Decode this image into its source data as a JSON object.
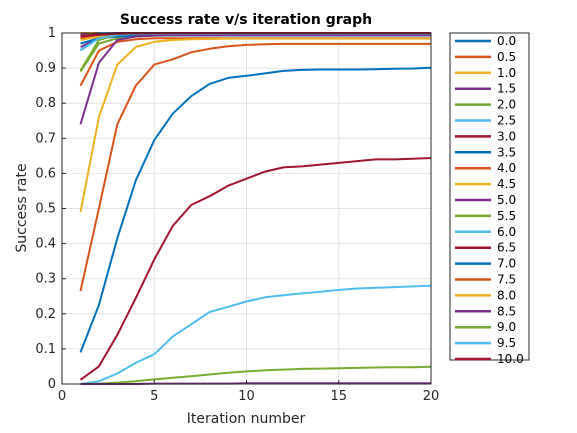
{
  "chart_data": {
    "type": "line",
    "title": "Success rate v/s iteration graph",
    "xlabel": "Iteration number",
    "ylabel": "Success rate",
    "xlim": [
      0,
      20
    ],
    "ylim": [
      0,
      1
    ],
    "xticks": [
      "0",
      "5",
      "10",
      "15",
      "20"
    ],
    "yticks": [
      "0",
      "0.1",
      "0.2",
      "0.3",
      "0.4",
      "0.5",
      "0.6",
      "0.7",
      "0.8",
      "0.9",
      "1"
    ],
    "grid": true,
    "legend_position": "outside-right",
    "x": [
      1,
      2,
      3,
      4,
      5,
      6,
      7,
      8,
      9,
      10,
      11,
      12,
      13,
      14,
      15,
      16,
      17,
      18,
      19,
      20
    ],
    "series": [
      {
        "name": "0.0",
        "color": "#0072BD",
        "values": [
          1,
          1,
          1,
          1,
          1,
          1,
          1,
          1,
          1,
          1,
          1,
          1,
          1,
          1,
          1,
          1,
          1,
          1,
          1,
          1
        ]
      },
      {
        "name": "0.5",
        "color": "#D95319",
        "values": [
          1,
          1,
          1,
          1,
          1,
          1,
          1,
          1,
          1,
          1,
          1,
          1,
          1,
          1,
          1,
          1,
          1,
          1,
          1,
          1
        ]
      },
      {
        "name": "1.0",
        "color": "#EDB120",
        "values": [
          1,
          1,
          1,
          1,
          1,
          1,
          1,
          1,
          1,
          1,
          1,
          1,
          1,
          1,
          1,
          1,
          1,
          1,
          1,
          1
        ]
      },
      {
        "name": "1.5",
        "color": "#7E2F8E",
        "values": [
          0.995,
          1,
          1,
          1,
          1,
          1,
          1,
          1,
          1,
          1,
          1,
          1,
          1,
          1,
          1,
          1,
          1,
          1,
          1,
          1
        ]
      },
      {
        "name": "2.0",
        "color": "#77AC30",
        "values": [
          0.99,
          1,
          1,
          1,
          1,
          1,
          1,
          1,
          1,
          1,
          1,
          1,
          1,
          1,
          1,
          1,
          1,
          1,
          1,
          1
        ]
      },
      {
        "name": "2.5",
        "color": "#4DBEEE",
        "values": [
          0.985,
          1,
          1,
          1,
          1,
          1,
          1,
          1,
          1,
          1,
          1,
          1,
          1,
          1,
          1,
          1,
          1,
          1,
          1,
          1
        ]
      },
      {
        "name": "3.0",
        "color": "#A2142F",
        "values": [
          0.99,
          0.998,
          1,
          1,
          1,
          1,
          1,
          1,
          1,
          1,
          1,
          1,
          1,
          1,
          1,
          1,
          1,
          1,
          1,
          1
        ]
      },
      {
        "name": "3.5",
        "color": "#0072BD",
        "values": [
          0.99,
          0.995,
          0.997,
          0.998,
          0.999,
          0.999,
          0.999,
          0.999,
          0.999,
          0.999,
          0.999,
          0.999,
          0.999,
          0.999,
          0.999,
          0.999,
          0.999,
          0.999,
          0.999,
          0.999
        ]
      },
      {
        "name": "4.0",
        "color": "#D95319",
        "values": [
          0.985,
          0.99,
          0.992,
          0.993,
          0.994,
          0.994,
          0.994,
          0.994,
          0.994,
          0.994,
          0.994,
          0.994,
          0.994,
          0.994,
          0.994,
          0.994,
          0.994,
          0.994,
          0.994,
          0.994
        ]
      },
      {
        "name": "4.5",
        "color": "#EDB120",
        "values": [
          0.98,
          0.99,
          0.993,
          0.995,
          0.996,
          0.996,
          0.996,
          0.996,
          0.996,
          0.996,
          0.996,
          0.996,
          0.996,
          0.996,
          0.996,
          0.996,
          0.996,
          0.996,
          0.996,
          0.996
        ]
      },
      {
        "name": "5.0",
        "color": "#7E2F8E",
        "values": [
          0.96,
          0.985,
          0.99,
          0.993,
          0.994,
          0.995,
          0.995,
          0.995,
          0.995,
          0.995,
          0.995,
          0.995,
          0.995,
          0.995,
          0.995,
          0.995,
          0.995,
          0.995,
          0.995,
          0.995
        ]
      },
      {
        "name": "5.5",
        "color": "#77AC30",
        "values": [
          0.89,
          0.97,
          0.985,
          0.99,
          0.992,
          0.993,
          0.993,
          0.993,
          0.993,
          0.993,
          0.993,
          0.993,
          0.993,
          0.993,
          0.993,
          0.993,
          0.993,
          0.993,
          0.993,
          0.993
        ]
      },
      {
        "name": "6.0",
        "color": "#4DBEEE",
        "values": [
          0.95,
          0.985,
          0.99,
          0.992,
          0.993,
          0.993,
          0.993,
          0.993,
          0.993,
          0.993,
          0.993,
          0.993,
          0.993,
          0.993,
          0.993,
          0.993,
          0.993,
          0.993,
          0.993,
          0.993
        ]
      },
      {
        "name": "6.5",
        "color": "#A2142F",
        "values": [
          0.99,
          0.995,
          0.997,
          0.998,
          0.998,
          0.998,
          0.998,
          0.998,
          0.998,
          0.998,
          0.998,
          0.998,
          0.998,
          0.998,
          0.998,
          0.998,
          0.998,
          0.998,
          0.998,
          0.998
        ]
      },
      {
        "name": "7.0",
        "color": "#0072BD",
        "values": [
          0.97,
          0.985,
          0.99,
          0.992,
          0.993,
          0.993,
          0.993,
          0.993,
          0.993,
          0.993,
          0.993,
          0.993,
          0.993,
          0.993,
          0.993,
          0.993,
          0.993,
          0.993,
          0.993,
          0.993
        ]
      },
      {
        "name": "7.5",
        "color": "#D95319",
        "values": [
          0.85,
          0.95,
          0.975,
          0.982,
          0.985,
          0.985,
          0.985,
          0.985,
          0.985,
          0.985,
          0.985,
          0.985,
          0.985,
          0.985,
          0.985,
          0.985,
          0.985,
          0.985,
          0.985,
          0.985
        ]
      },
      {
        "name": "8.0",
        "color": "#EDB120",
        "values": [
          0.49,
          0.76,
          0.91,
          0.96,
          0.975,
          0.98,
          0.982,
          0.983,
          0.984,
          0.984,
          0.984,
          0.984,
          0.984,
          0.984,
          0.984,
          0.984,
          0.984,
          0.984,
          0.984,
          0.984
        ]
      },
      {
        "name": "8.5",
        "color": "#7E2F8E",
        "values": [
          0.74,
          0.915,
          0.98,
          0.99,
          0.993,
          0.994,
          0.994,
          0.994,
          0.994,
          0.994,
          0.994,
          0.994,
          0.994,
          0.994,
          0.994,
          0.994,
          0.994,
          0.994,
          0.994,
          0.994
        ]
      },
      {
        "name": "9.0",
        "color": "#77AC30",
        "values": [
          0.893,
          0.98,
          0.995,
          0.998,
          0.999,
          0.999,
          0.999,
          0.999,
          0.999,
          0.999,
          0.999,
          0.999,
          0.999,
          0.999,
          0.999,
          0.999,
          0.999,
          0.999,
          0.999,
          0.999
        ]
      },
      {
        "name": "9.5",
        "color": "#4DBEEE",
        "values": [
          0.952,
          0.985,
          0.995,
          0.998,
          0.999,
          0.999,
          0.999,
          0.999,
          0.999,
          0.999,
          0.999,
          0.999,
          0.999,
          0.999,
          0.999,
          0.999,
          0.999,
          0.999,
          0.999,
          0.999
        ]
      },
      {
        "name": "10.0",
        "color": "#A2142F",
        "values": [
          0.99,
          0.995,
          0.998,
          0.999,
          1,
          1,
          1,
          1,
          1,
          1,
          1,
          1,
          1,
          1,
          1,
          1,
          1,
          1,
          1,
          1
        ]
      }
    ],
    "visible_curves_from_image": [
      {
        "color": "#D95319",
        "values": [
          0.265,
          0.5,
          0.74,
          0.85,
          0.91,
          0.925,
          0.945,
          0.955,
          0.962,
          0.966,
          0.968,
          0.969,
          0.969,
          0.969,
          0.969,
          0.969,
          0.969,
          0.969,
          0.969,
          0.969
        ]
      },
      {
        "color": "#0072BD",
        "values": [
          0.09,
          0.225,
          0.415,
          0.58,
          0.695,
          0.77,
          0.82,
          0.855,
          0.872,
          0.878,
          0.885,
          0.892,
          0.895,
          0.896,
          0.896,
          0.896,
          0.897,
          0.898,
          0.899,
          0.901
        ]
      },
      {
        "color": "#A2142F",
        "values": [
          0.012,
          0.05,
          0.14,
          0.245,
          0.355,
          0.45,
          0.51,
          0.535,
          0.565,
          0.585,
          0.605,
          0.617,
          0.62,
          0.625,
          0.63,
          0.635,
          0.64,
          0.64,
          0.642,
          0.644
        ]
      },
      {
        "color": "#4DBEEE",
        "values": [
          0.0,
          0.008,
          0.03,
          0.06,
          0.085,
          0.135,
          0.17,
          0.205,
          0.22,
          0.235,
          0.247,
          0.253,
          0.258,
          0.263,
          0.268,
          0.272,
          0.274,
          0.276,
          0.278,
          0.28
        ]
      },
      {
        "color": "#77AC30",
        "values": [
          0.0,
          0.001,
          0.004,
          0.008,
          0.013,
          0.018,
          0.022,
          0.027,
          0.032,
          0.036,
          0.039,
          0.041,
          0.043,
          0.044,
          0.045,
          0.046,
          0.047,
          0.048,
          0.048,
          0.049
        ]
      },
      {
        "color": "#7E2F8E",
        "values": [
          0,
          0,
          0,
          0,
          0.001,
          0.001,
          0.001,
          0.001,
          0.001,
          0.002,
          0.002,
          0.002,
          0.002,
          0.002,
          0.002,
          0.002,
          0.002,
          0.002,
          0.002,
          0.002
        ]
      }
    ]
  }
}
